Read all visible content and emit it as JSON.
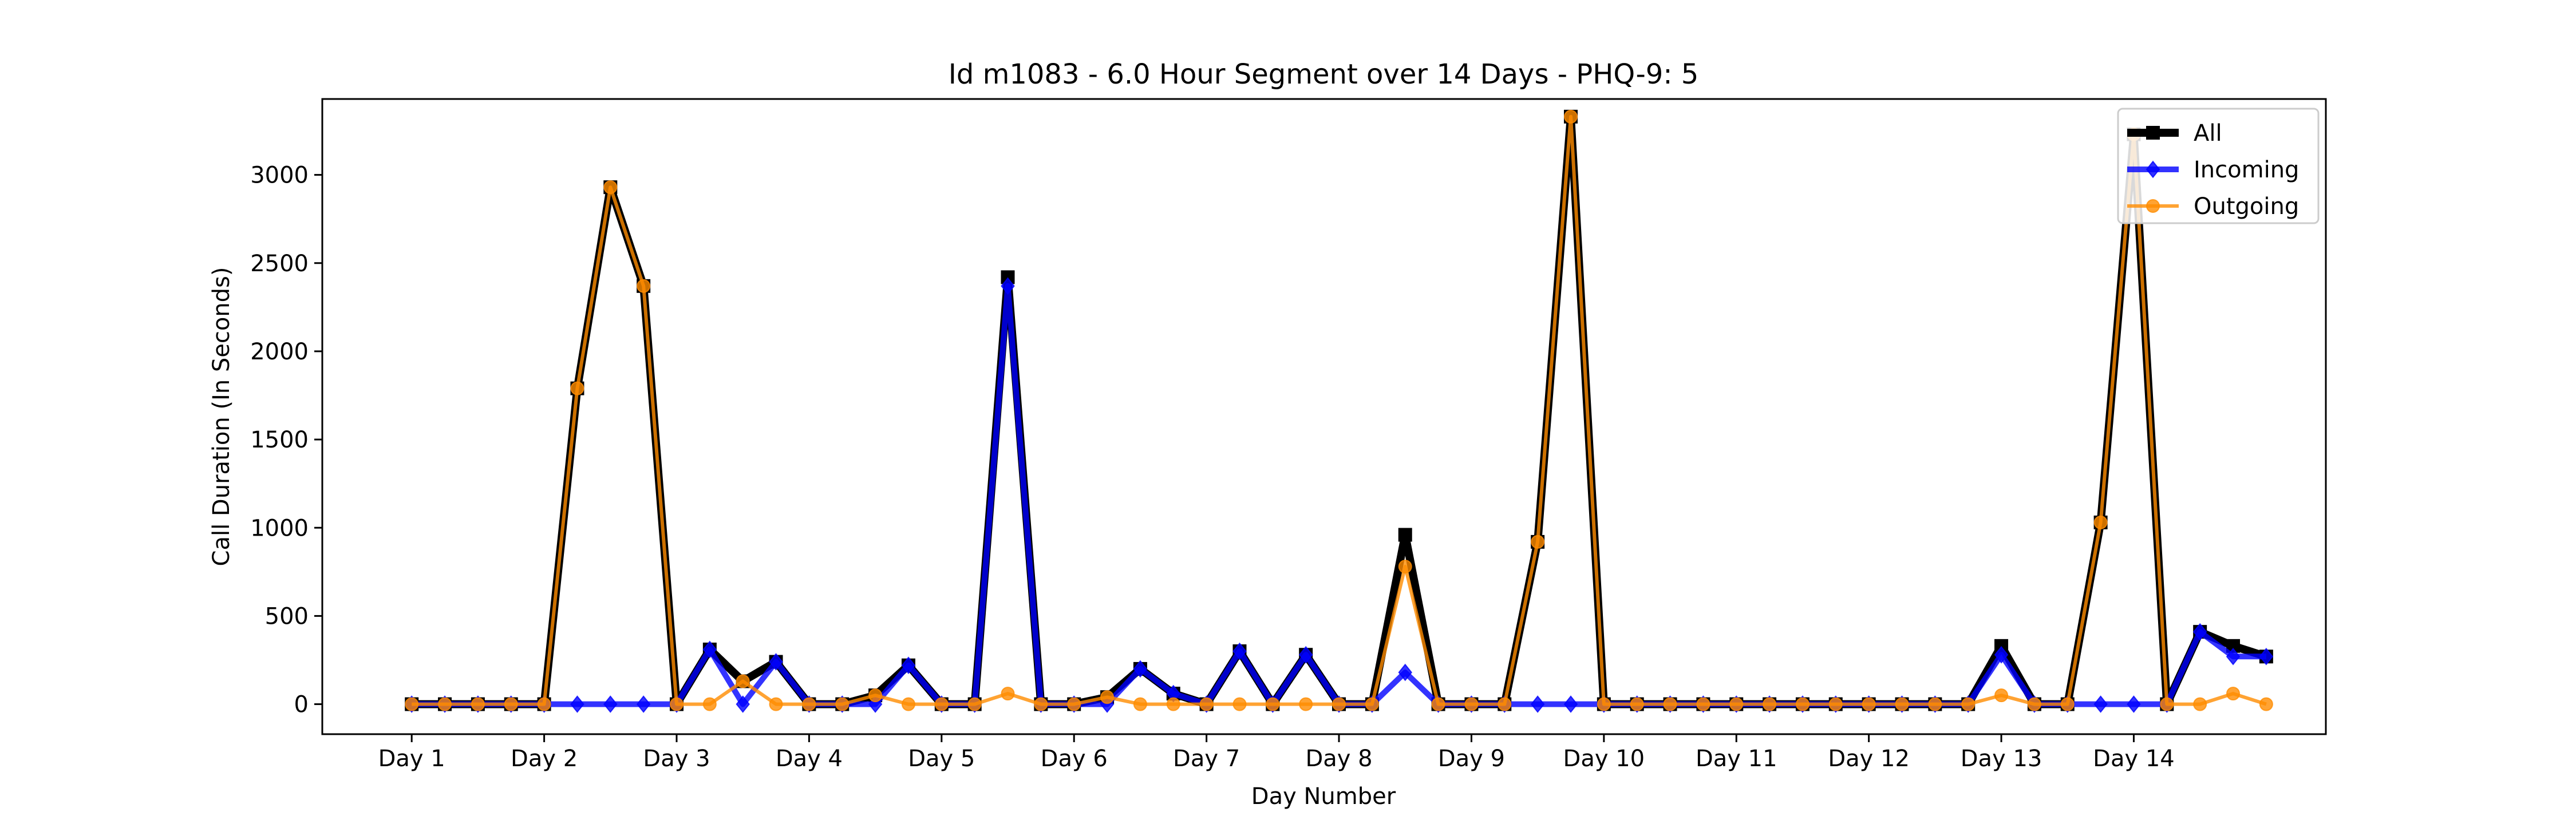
{
  "chart_data": {
    "type": "line",
    "title": "Id m1083 - 6.0 Hour Segment over 14 Days - PHQ-9: 5",
    "xlabel": "Day Number",
    "ylabel": "Call Duration (In Seconds)",
    "xticks": [
      {
        "x": 0,
        "label": "Day 1"
      },
      {
        "x": 4,
        "label": "Day 2"
      },
      {
        "x": 8,
        "label": "Day 3"
      },
      {
        "x": 12,
        "label": "Day 4"
      },
      {
        "x": 16,
        "label": "Day 5"
      },
      {
        "x": 20,
        "label": "Day 6"
      },
      {
        "x": 24,
        "label": "Day 7"
      },
      {
        "x": 28,
        "label": "Day 8"
      },
      {
        "x": 32,
        "label": "Day 9"
      },
      {
        "x": 36,
        "label": "Day 10"
      },
      {
        "x": 40,
        "label": "Day 11"
      },
      {
        "x": 44,
        "label": "Day 12"
      },
      {
        "x": 48,
        "label": "Day 13"
      },
      {
        "x": 52,
        "label": "Day 14"
      }
    ],
    "yticks": [
      0,
      500,
      1000,
      1500,
      2000,
      2500,
      3000
    ],
    "xlim": [
      -2.7,
      57.8
    ],
    "ylim": [
      -170,
      3430
    ],
    "legend_position": "upper right",
    "grid": false,
    "series": [
      {
        "name": "All",
        "color": "#000000",
        "marker": "square",
        "values": [
          0,
          0,
          0,
          0,
          0,
          1790,
          2930,
          2370,
          0,
          310,
          130,
          240,
          0,
          0,
          50,
          220,
          0,
          0,
          2420,
          0,
          0,
          40,
          200,
          60,
          0,
          300,
          0,
          280,
          0,
          0,
          960,
          0,
          0,
          0,
          920,
          3330,
          0,
          0,
          0,
          0,
          0,
          0,
          0,
          0,
          0,
          0,
          0,
          0,
          330,
          0,
          0,
          1030,
          3230,
          0,
          410,
          330,
          270
        ]
      },
      {
        "name": "Incoming",
        "color": "#0000ff",
        "marker": "diamond",
        "values": [
          0,
          0,
          0,
          0,
          0,
          0,
          0,
          0,
          0,
          310,
          0,
          240,
          0,
          0,
          0,
          220,
          0,
          0,
          2370,
          0,
          0,
          0,
          200,
          60,
          0,
          300,
          0,
          280,
          0,
          0,
          180,
          0,
          0,
          0,
          0,
          0,
          0,
          0,
          0,
          0,
          0,
          0,
          0,
          0,
          0,
          0,
          0,
          0,
          280,
          0,
          0,
          0,
          0,
          0,
          410,
          270,
          270
        ]
      },
      {
        "name": "Outgoing",
        "color": "#ff8c00",
        "marker": "circle",
        "values": [
          0,
          0,
          0,
          0,
          0,
          1790,
          2930,
          2370,
          0,
          0,
          130,
          0,
          0,
          0,
          50,
          0,
          0,
          0,
          60,
          0,
          0,
          40,
          0,
          0,
          0,
          0,
          0,
          0,
          0,
          0,
          780,
          0,
          0,
          0,
          920,
          3330,
          0,
          0,
          0,
          0,
          0,
          0,
          0,
          0,
          0,
          0,
          0,
          0,
          50,
          0,
          0,
          1030,
          3230,
          0,
          0,
          60,
          0
        ]
      }
    ]
  }
}
